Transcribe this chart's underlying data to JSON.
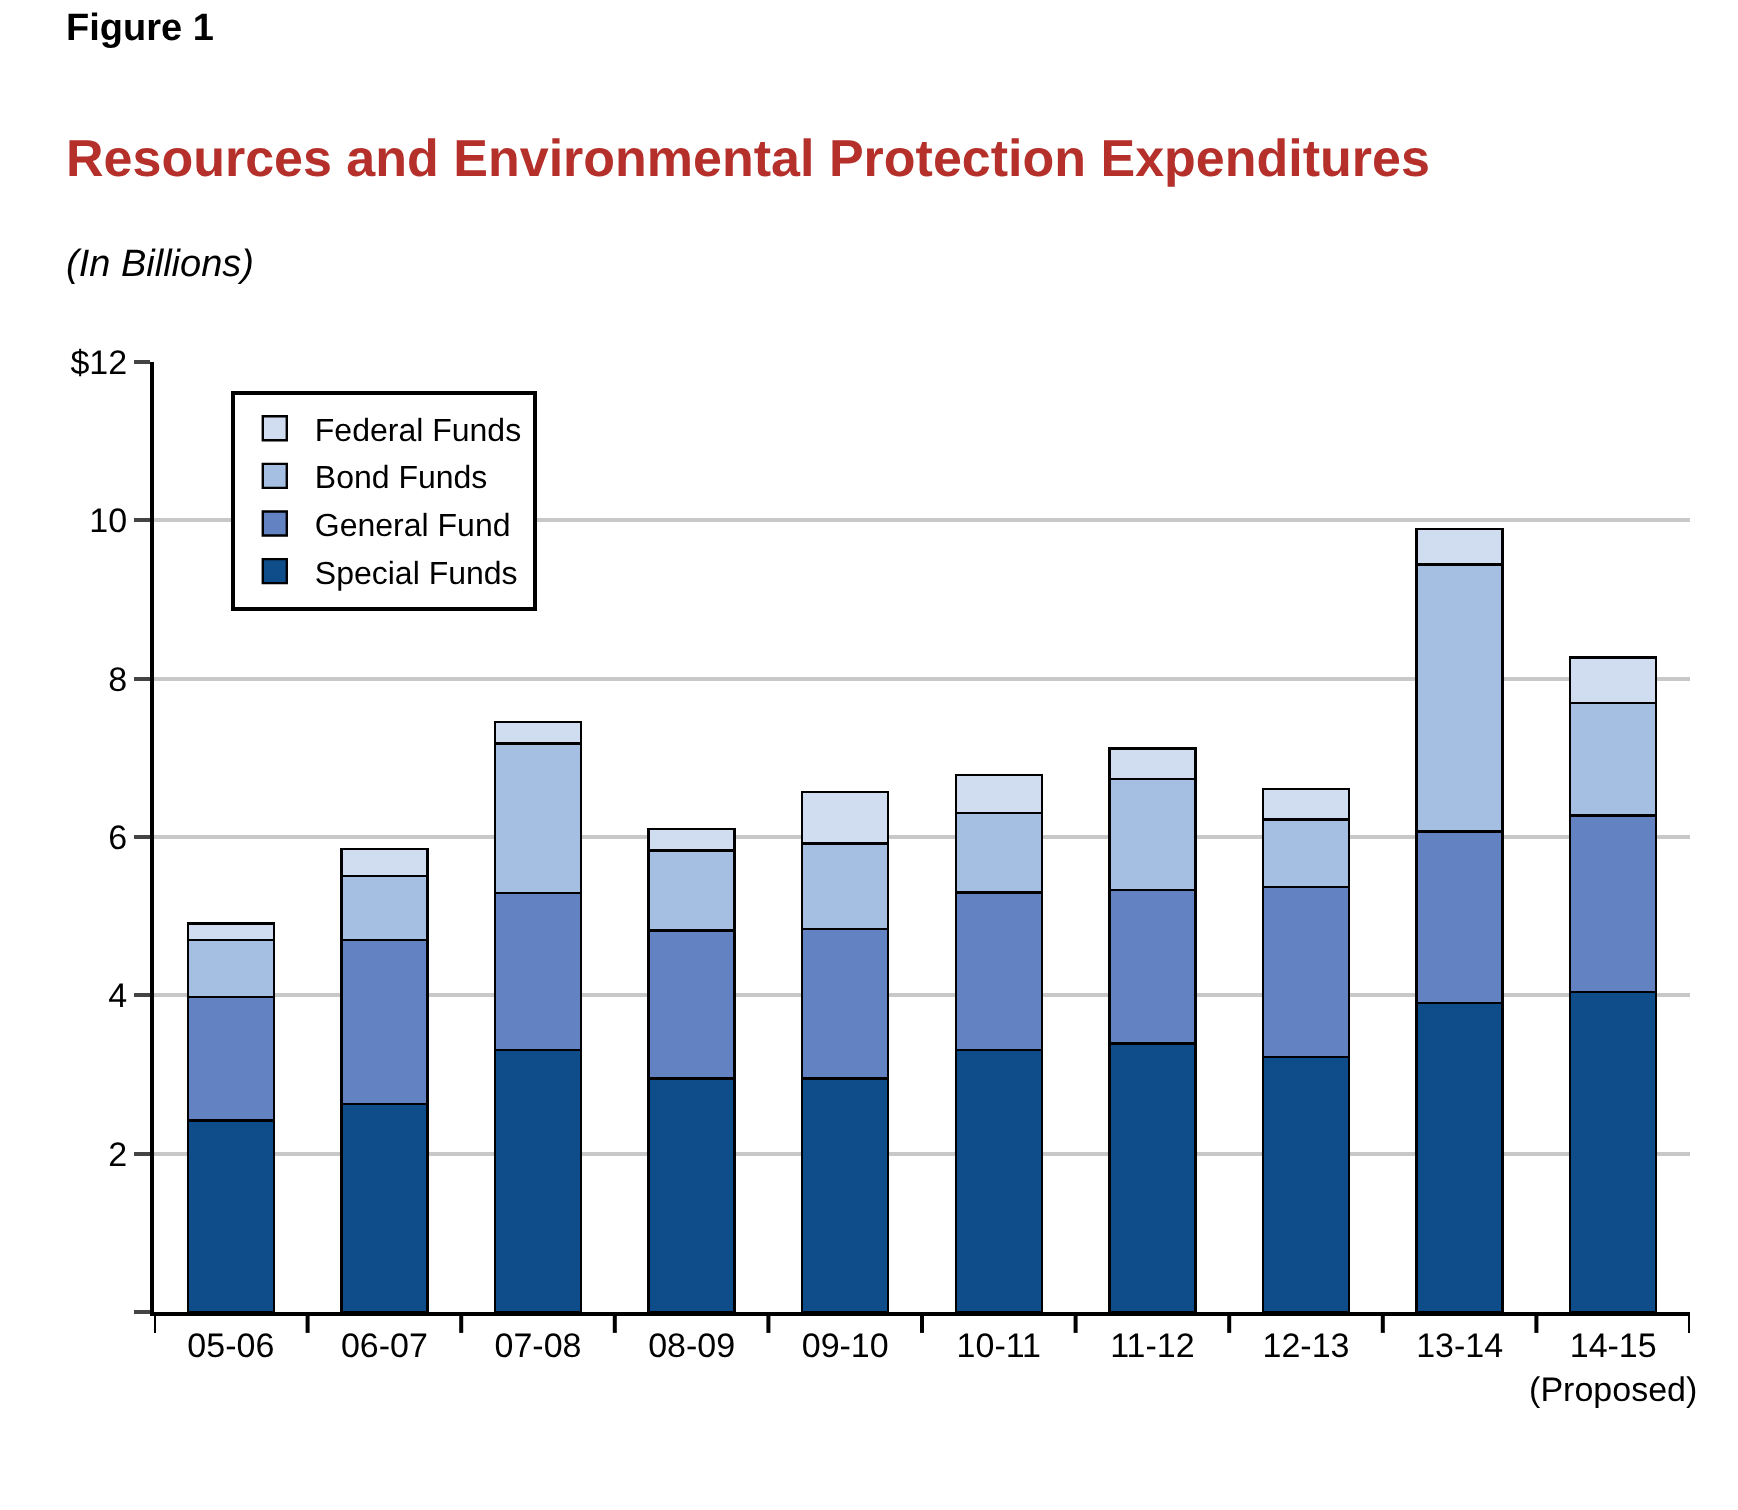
{
  "chart_data": {
    "type": "bar",
    "stacked": true,
    "title": "Figure 1",
    "subtitle": "Resources and Environmental Protection Expenditures",
    "ylabel": "(In Billions)",
    "categories": [
      "05-06",
      "06-07",
      "07-08",
      "08-09",
      "09-10",
      "10-11",
      "11-12",
      "12-13",
      "13-14",
      "14-15\n(Proposed)"
    ],
    "series": [
      {
        "name": "Special Funds",
        "color": "#0f4c8a",
        "values": [
          2.42,
          2.63,
          3.31,
          2.95,
          2.95,
          3.31,
          3.39,
          3.22,
          3.9,
          4.04
        ]
      },
      {
        "name": "General Fund",
        "color": "#6282c2",
        "values": [
          1.56,
          2.07,
          1.98,
          1.87,
          1.89,
          1.99,
          1.94,
          2.15,
          2.17,
          2.23
        ]
      },
      {
        "name": "Bond Funds",
        "color": "#a5bfe3",
        "values": [
          0.72,
          0.81,
          1.89,
          1.01,
          1.08,
          1.0,
          1.4,
          0.85,
          3.37,
          1.42
        ]
      },
      {
        "name": "Federal Funds",
        "color": "#d0dcf0",
        "values": [
          0.21,
          0.34,
          0.27,
          0.27,
          0.65,
          0.48,
          0.39,
          0.39,
          0.45,
          0.58
        ]
      }
    ],
    "ylim": [
      0,
      12
    ],
    "yticks": [
      {
        "value": 0,
        "label": null
      },
      2,
      4,
      6,
      8,
      10,
      {
        "value": 12,
        "label": "$12"
      }
    ],
    "grid": "y",
    "legend": "top left"
  }
}
